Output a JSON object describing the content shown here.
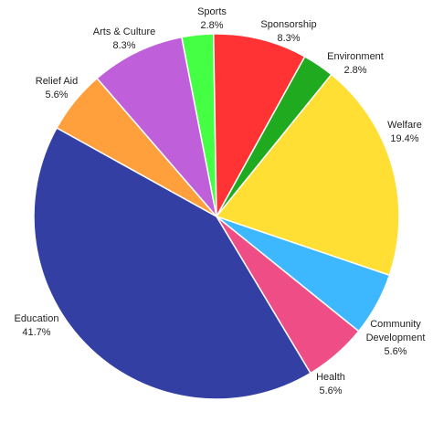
{
  "chart_data": {
    "type": "pie",
    "slices": [
      {
        "label": "Sports",
        "value": 2.8,
        "value_label": "2.8%",
        "color": "#44ff44"
      },
      {
        "label": "Sponsorship",
        "value": 8.3,
        "value_label": "8.3%",
        "color": "#ff3333"
      },
      {
        "label": "Environment",
        "value": 2.8,
        "value_label": "2.8%",
        "color": "#1faa1f"
      },
      {
        "label": "Welfare",
        "value": 19.4,
        "value_label": "19.4%",
        "color": "#ffdf33"
      },
      {
        "label": "Community Development",
        "value": 5.6,
        "value_label": "5.6%",
        "color": "#3db8ff"
      },
      {
        "label": "Health",
        "value": 5.6,
        "value_label": "5.6%",
        "color": "#ee4d85"
      },
      {
        "label": "Education",
        "value": 41.7,
        "value_label": "41.7%",
        "color": "#333fa3"
      },
      {
        "label": "Relief Aid",
        "value": 5.6,
        "value_label": "5.6%",
        "color": "#ffa03d"
      },
      {
        "label": "Arts & Culture",
        "value": 8.3,
        "value_label": "8.3%",
        "color": "#bf5fd9"
      }
    ]
  }
}
